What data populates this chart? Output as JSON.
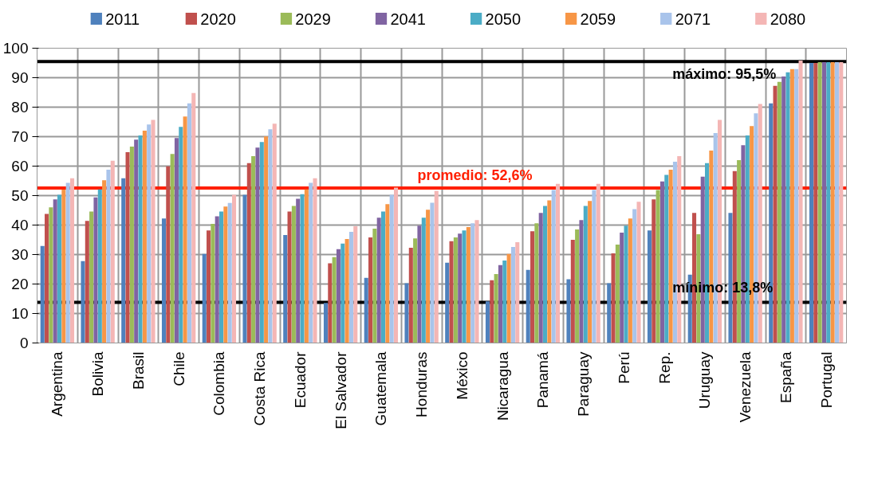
{
  "chart_data": {
    "type": "bar",
    "categories": [
      "Argentina",
      "Bolivia",
      "Brasil",
      "Chile",
      "Colombia",
      "Costa Rica",
      "Ecuador",
      "El Salvador",
      "Guatemala",
      "Honduras",
      "México",
      "Nicaragua",
      "Panamá",
      "Paraguay",
      "Perú",
      "Rep.",
      "Uruguay",
      "Venezuela",
      "España",
      "Portugal"
    ],
    "series": [
      {
        "name": "2011",
        "color": "#4f81bd",
        "values": [
          32.9,
          27.8,
          55.9,
          42.2,
          30.2,
          50.3,
          36.6,
          13.6,
          22.1,
          20.3,
          27.2,
          14.1,
          24.8,
          21.6,
          20.3,
          38.2,
          23.2,
          44.1,
          81.3,
          95
        ]
      },
      {
        "name": "2020",
        "color": "#c0504d",
        "values": [
          43.8,
          41.4,
          64.7,
          59.9,
          38.2,
          61,
          44.6,
          27,
          35.8,
          32.3,
          34.5,
          21.3,
          37.9,
          35,
          30.4,
          48.7,
          44.1,
          58.3,
          87.2,
          95
        ]
      },
      {
        "name": "2029",
        "color": "#9bbb59",
        "values": [
          46,
          44.6,
          66.6,
          64.1,
          40.4,
          63.4,
          46.5,
          29.1,
          38.8,
          35.5,
          35.8,
          23.4,
          40.6,
          38.5,
          33.4,
          51.9,
          36.9,
          62,
          88.6,
          95.3
        ]
      },
      {
        "name": "2041",
        "color": "#8064a2",
        "values": [
          48.7,
          49.4,
          69,
          69.5,
          43,
          66.3,
          48.9,
          31.8,
          42.5,
          39.8,
          37.1,
          26.4,
          44.1,
          41.7,
          37.4,
          54.8,
          56.4,
          67.1,
          90.4,
          95.3
        ]
      },
      {
        "name": "2050",
        "color": "#4bacc6",
        "values": [
          50.3,
          52.1,
          70.4,
          73.3,
          44.6,
          68.2,
          50.5,
          33.7,
          44.6,
          42.5,
          38.2,
          28,
          46.5,
          46.5,
          39.8,
          57,
          61,
          70.4,
          91.8,
          95.3
        ]
      },
      {
        "name": "2059",
        "color": "#f79646",
        "values": [
          52,
          55.2,
          72,
          76.8,
          46.3,
          70.1,
          52.1,
          35.3,
          47.1,
          45.2,
          39.3,
          30.2,
          48.4,
          48.2,
          42.2,
          58.8,
          65.3,
          73.6,
          92.9,
          95.3
        ]
      },
      {
        "name": "2071",
        "color": "#a9c4eb",
        "values": [
          54.3,
          58.8,
          74.1,
          81.3,
          47.5,
          72.5,
          54.3,
          37.7,
          50.3,
          47.6,
          40.6,
          32.6,
          51.9,
          51.9,
          45.4,
          61.5,
          71.2,
          77.9,
          92.9,
          95.3
        ]
      },
      {
        "name": "2080",
        "color": "#f4b6b5",
        "values": [
          55.9,
          61.8,
          75.7,
          84.8,
          50.3,
          74.4,
          55.9,
          39.6,
          52.7,
          51.6,
          41.7,
          34.2,
          54,
          54,
          47.9,
          63.4,
          75.7,
          81.1,
          95.8,
          95.3
        ]
      }
    ],
    "ylim": [
      0,
      100
    ],
    "yticks": [
      0,
      10,
      20,
      30,
      40,
      50,
      60,
      70,
      80,
      90,
      100
    ],
    "grid": true,
    "legend": "top",
    "ref_lines": [
      {
        "axis": "y",
        "value": 95.5,
        "label": "máximo: 95,5%",
        "color": "#000000"
      },
      {
        "axis": "y",
        "value": 52.6,
        "label": "promedio: 52,6%",
        "color": "#ff2000"
      },
      {
        "axis": "y",
        "value": 13.8,
        "label": "mínimo: 13,8%",
        "color": "#000000"
      }
    ]
  }
}
